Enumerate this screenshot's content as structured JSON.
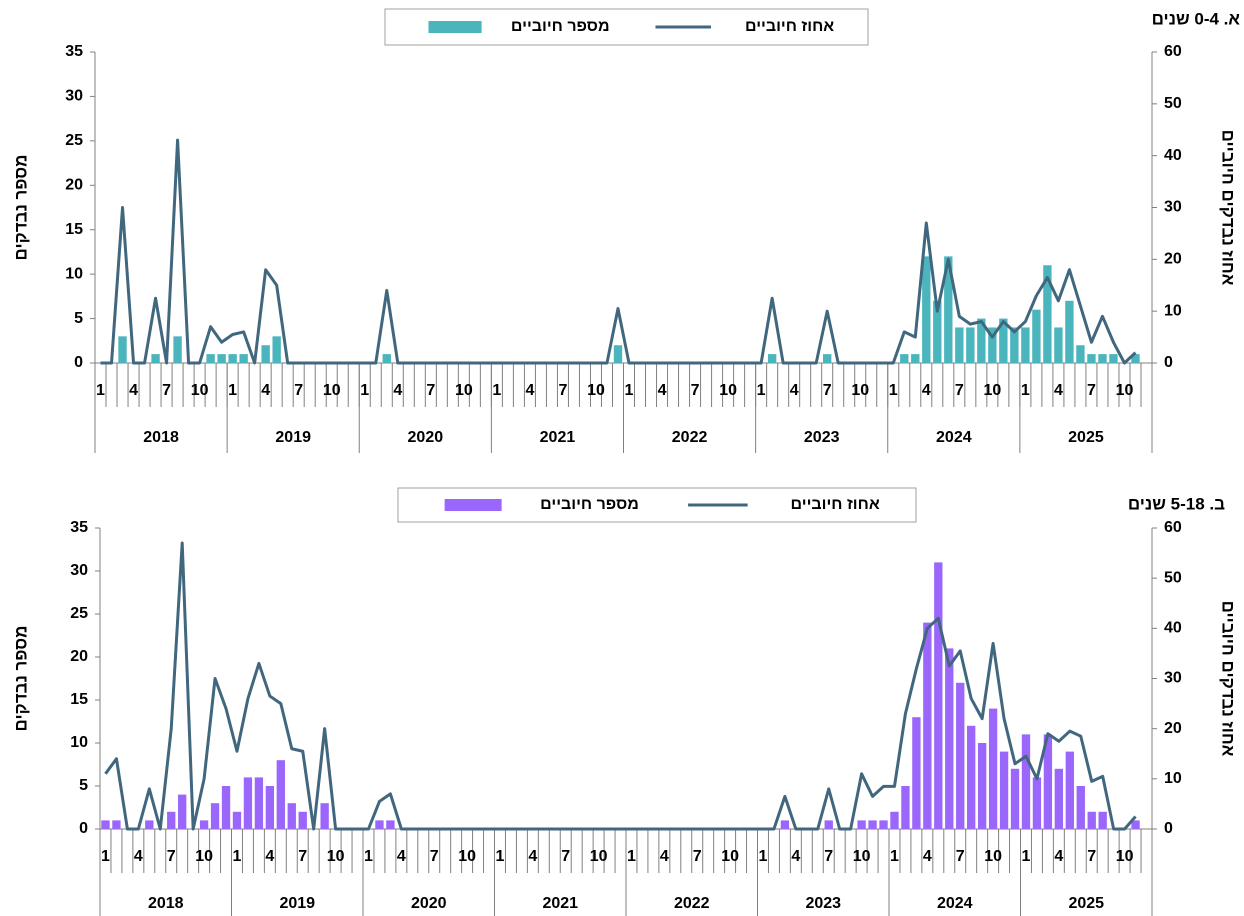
{
  "chart_data": [
    {
      "type": "combo",
      "title": "א. 0-4 שנים",
      "y_label": "מספר נבדקים",
      "y2_label": "אחוז נבדקים חיוביים",
      "categories": [
        "1",
        null,
        null,
        "4",
        null,
        null,
        "7",
        null,
        null,
        "10",
        null,
        null,
        "1",
        null,
        null,
        "4",
        null,
        null,
        "7",
        null,
        null,
        "10",
        null,
        null,
        "1",
        null,
        null,
        "4",
        null,
        null,
        "7",
        null,
        null,
        "10",
        null,
        null,
        "1",
        null,
        null,
        "4",
        null,
        null,
        "7",
        null,
        null,
        "10",
        null,
        null,
        "1",
        null,
        null,
        "4",
        null,
        null,
        "7",
        null,
        null,
        "10",
        null,
        null,
        "1",
        null,
        null,
        "4",
        null,
        null,
        "7",
        null,
        null,
        "10",
        null,
        null,
        "1",
        null,
        null,
        "4",
        null,
        null,
        "7",
        null,
        null,
        "10",
        null,
        null,
        "1",
        null,
        null,
        "4",
        null,
        null,
        "7",
        null,
        null,
        "10",
        null,
        null
      ],
      "groups": [
        "2018",
        "2019",
        "2020",
        "2021",
        "2022",
        "2023",
        "2024",
        "2025"
      ],
      "ylim": [
        0,
        35
      ],
      "yticks": [
        0,
        5,
        10,
        15,
        20,
        25,
        30,
        35
      ],
      "y2lim": [
        0,
        60
      ],
      "y2ticks": [
        0,
        10,
        20,
        30,
        40,
        50,
        60
      ],
      "series": [
        {
          "name": "מספר חיוביים",
          "type": "bar",
          "color": "#4bb5be",
          "values": [
            0,
            0,
            3,
            0,
            0,
            1,
            0,
            3,
            0,
            0,
            1,
            1,
            1,
            1,
            0,
            2,
            3,
            0,
            0,
            0,
            0,
            0,
            0,
            0,
            0,
            0,
            1,
            0,
            0,
            0,
            0,
            0,
            0,
            0,
            0,
            0,
            0,
            0,
            0,
            0,
            0,
            0,
            0,
            0,
            0,
            0,
            0,
            2,
            0,
            0,
            0,
            0,
            0,
            0,
            0,
            0,
            0,
            0,
            0,
            0,
            0,
            1,
            0,
            0,
            0,
            0,
            1,
            0,
            0,
            0,
            0,
            0,
            0,
            1,
            1,
            12,
            7,
            12,
            4,
            4,
            5,
            4,
            5,
            4,
            4,
            6,
            11,
            4,
            7,
            2,
            1,
            1,
            1,
            0,
            1,
            null
          ]
        },
        {
          "name": "אחוז חיוביים",
          "type": "line",
          "axis": "y2",
          "color": "#41677f",
          "values": [
            0,
            0,
            30,
            0,
            0,
            12.5,
            0,
            43,
            0,
            0,
            7,
            4,
            5.5,
            6,
            0,
            18,
            15,
            0,
            0,
            0,
            0,
            0,
            0,
            0,
            0,
            0,
            14,
            0,
            0,
            0,
            0,
            0,
            0,
            0,
            0,
            0,
            0,
            0,
            0,
            0,
            0,
            0,
            0,
            0,
            0,
            0,
            0,
            10.5,
            0,
            0,
            0,
            0,
            0,
            0,
            0,
            0,
            0,
            0,
            0,
            0,
            0,
            12.5,
            0,
            0,
            0,
            0,
            10,
            0,
            0,
            0,
            0,
            0,
            0,
            6,
            5,
            27,
            10,
            20,
            9,
            7.5,
            8,
            5,
            8,
            6,
            8,
            13,
            16.5,
            12,
            18,
            11,
            4,
            9,
            4,
            0,
            2,
            null
          ]
        }
      ]
    },
    {
      "type": "combo",
      "title": "ב. 5-18 שנים",
      "y_label": "מספר נבדקים",
      "y2_label": "אחוז נבדקים חיוביים",
      "categories": [
        "1",
        null,
        null,
        "4",
        null,
        null,
        "7",
        null,
        null,
        "10",
        null,
        null,
        "1",
        null,
        null,
        "4",
        null,
        null,
        "7",
        null,
        null,
        "10",
        null,
        null,
        "1",
        null,
        null,
        "4",
        null,
        null,
        "7",
        null,
        null,
        "10",
        null,
        null,
        "1",
        null,
        null,
        "4",
        null,
        null,
        "7",
        null,
        null,
        "10",
        null,
        null,
        "1",
        null,
        null,
        "4",
        null,
        null,
        "7",
        null,
        null,
        "10",
        null,
        null,
        "1",
        null,
        null,
        "4",
        null,
        null,
        "7",
        null,
        null,
        "10",
        null,
        null,
        "1",
        null,
        null,
        "4",
        null,
        null,
        "7",
        null,
        null,
        "10",
        null,
        null,
        "1",
        null,
        null,
        "4",
        null,
        null,
        "7",
        null,
        null,
        "10",
        null,
        null
      ],
      "groups": [
        "2018",
        "2019",
        "2020",
        "2021",
        "2022",
        "2023",
        "2024",
        "2025"
      ],
      "ylim": [
        0,
        35
      ],
      "yticks": [
        0,
        5,
        10,
        15,
        20,
        25,
        30,
        35
      ],
      "y2lim": [
        0,
        60
      ],
      "y2ticks": [
        0,
        10,
        20,
        30,
        40,
        50,
        60
      ],
      "series": [
        {
          "name": "מספר חיוביים",
          "type": "bar",
          "color": "#9a66fb",
          "values": [
            1,
            1,
            0,
            0,
            1,
            0,
            2,
            4,
            0,
            1,
            3,
            5,
            2,
            6,
            6,
            5,
            8,
            3,
            2,
            0,
            3,
            0,
            0,
            0,
            0,
            1,
            1,
            0,
            0,
            0,
            0,
            0,
            0,
            0,
            0,
            0,
            0,
            0,
            0,
            0,
            0,
            0,
            0,
            0,
            0,
            0,
            0,
            0,
            0,
            0,
            0,
            0,
            0,
            0,
            0,
            0,
            0,
            0,
            0,
            0,
            0,
            0,
            1,
            0,
            0,
            0,
            1,
            0,
            0,
            1,
            1,
            1,
            2,
            5,
            13,
            24,
            31,
            21,
            17,
            12,
            10,
            14,
            9,
            7,
            11,
            6,
            11,
            7,
            9,
            5,
            2,
            2,
            0,
            0,
            1,
            null
          ]
        },
        {
          "name": "אחוז חיוביים",
          "type": "line",
          "axis": "y2",
          "color": "#41677f",
          "values": [
            11,
            14,
            0,
            0,
            8,
            0,
            20,
            57,
            0,
            10,
            30,
            24,
            15.5,
            26,
            33,
            26.5,
            25,
            16,
            15.5,
            0,
            20,
            0,
            0,
            0,
            0,
            5.5,
            7,
            0,
            0,
            0,
            0,
            0,
            0,
            0,
            0,
            0,
            0,
            0,
            0,
            0,
            0,
            0,
            0,
            0,
            0,
            0,
            0,
            0,
            0,
            0,
            0,
            0,
            0,
            0,
            0,
            0,
            0,
            0,
            0,
            0,
            0,
            0,
            6.5,
            0,
            0,
            0,
            8,
            0,
            0,
            11,
            6.5,
            8.5,
            8.5,
            23,
            32,
            40,
            42,
            32.5,
            35.5,
            26,
            22,
            37,
            22,
            13,
            14.5,
            10,
            19,
            17.5,
            19.5,
            18.5,
            9.5,
            10.5,
            0,
            0,
            2.5,
            null
          ]
        }
      ]
    }
  ]
}
